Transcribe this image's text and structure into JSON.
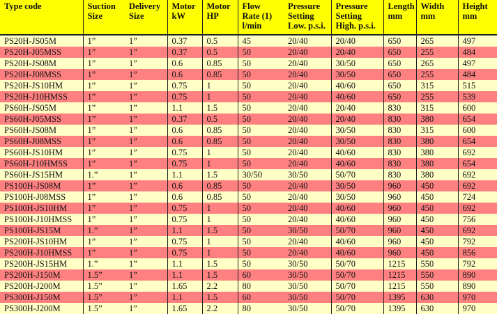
{
  "colors": {
    "header": "#ffff00",
    "row_light": "#ffffc6",
    "row_pink": "#ff8080"
  },
  "headers": [
    [
      "Type code"
    ],
    [
      "Suction",
      "Size"
    ],
    [
      "Delivery",
      "Size"
    ],
    [
      "Motor",
      "kW"
    ],
    [
      "Motor",
      "HP"
    ],
    [
      "Flow",
      "Rate (1)",
      "l/min"
    ],
    [
      "Pressure",
      "Setting",
      "Low. p.s.i."
    ],
    [
      "Pressure",
      "Setting",
      "High. p.s.i."
    ],
    [
      "Length",
      "mm"
    ],
    [
      "Width",
      "mm"
    ],
    [
      "Height",
      "mm"
    ]
  ],
  "rows": [
    [
      "PS20H-JS05M",
      "1”",
      "1”",
      "0.37",
      "0.5",
      "45",
      "20/40",
      "20/40",
      "650",
      "265",
      "497"
    ],
    [
      "PS20H-J05MSS",
      "1”",
      "1”",
      "0.37",
      "0.5",
      "50",
      "20/40",
      "20/40",
      "650",
      "255",
      "484"
    ],
    [
      "PS20H-JS08M",
      "1”",
      "1”",
      "0.6",
      "0.85",
      "50",
      "20/40",
      "30/50",
      "650",
      "265",
      "497"
    ],
    [
      "PS20H-J08MSS",
      "1”",
      "1”",
      "0.6",
      "0.85",
      "50",
      "20/40",
      "30/50",
      "650",
      "255",
      "484"
    ],
    [
      "PS20H-JS10HM",
      "1”",
      "1”",
      "0.75",
      "1",
      "50",
      "20/40",
      "40/60",
      "650",
      "315",
      "515"
    ],
    [
      "PS20H-J10HMSS",
      "1”",
      "1”",
      "0.75",
      "1",
      "50",
      "20/40",
      "40/60",
      "650",
      "255",
      "539"
    ],
    [
      "PS60H-JS05M",
      "1”",
      "1”",
      "1.1",
      "1.5",
      "50",
      "20/40",
      "20/40",
      "830",
      "315",
      "600"
    ],
    [
      "PS60H-J05MSS",
      "1”",
      "1”",
      "0.37",
      "0.5",
      "50",
      "20/40",
      "20/40",
      "830",
      "380",
      "654"
    ],
    [
      "PS60H-JS08M",
      "1”",
      "1”",
      "0.6",
      "0.85",
      "50",
      "20/40",
      "30/50",
      "830",
      "315",
      "600"
    ],
    [
      "PS60H-J08MSS",
      "1”",
      "1”",
      "0.6",
      "0.85",
      "50",
      "20/40",
      "30/50",
      "830",
      "380",
      "654"
    ],
    [
      "PS60H-JS10HM",
      "1”",
      "1”",
      "0.75",
      "1",
      "50",
      "20/40",
      "40/60",
      "830",
      "380",
      "692"
    ],
    [
      "PS60H-J10HMSS",
      "1”",
      "1”",
      "0.75",
      "1",
      "50",
      "20/40",
      "40/60",
      "830",
      "380",
      "654"
    ],
    [
      "PS60H-JS15HM",
      "1.”",
      "1”",
      "1.1",
      "1.5",
      "30/50",
      "30/50",
      "50/70",
      "830",
      "380",
      "692"
    ],
    [
      "PS100H-JS08M",
      "1”",
      "1”",
      "0.6",
      "0.85",
      "50",
      "20/40",
      "30/50",
      "960",
      "450",
      "692"
    ],
    [
      "PS100H-J08MSS",
      "1”",
      "1”",
      "0.6",
      "0.85",
      "50",
      "20/40",
      "30/50",
      "960",
      "450",
      "724"
    ],
    [
      "PS100H-JS10HM",
      "1”",
      "1”",
      "0.75",
      "1",
      "50",
      "20/40",
      "40/60",
      "960",
      "450",
      "692"
    ],
    [
      "PS100H-J10HMSS",
      "1”",
      "1”",
      "0.75",
      "1",
      "50",
      "20/40",
      "40/60",
      "960",
      "450",
      "756"
    ],
    [
      "PS100H-JS15M",
      "1.”",
      "1”",
      "1.1",
      "1.5",
      "50",
      "30/50",
      "50/70",
      "960",
      "450",
      "692"
    ],
    [
      "PS200H-JS10HM",
      "1”",
      "1”",
      "0.75",
      "1",
      "50",
      "20/40",
      "40/60",
      "960",
      "450",
      "792"
    ],
    [
      "PS200H-J10HMSS",
      "1”",
      "1”",
      "0.75",
      "1",
      "50",
      "20/40",
      "40/60",
      "960",
      "450",
      "856"
    ],
    [
      "PS200H-JS15HM",
      "1.”",
      "1”",
      "1.1",
      "1.5",
      "50",
      "30/50",
      "50/70",
      "1215",
      "550",
      "792"
    ],
    [
      "PS200H-J150M",
      "1.5”",
      "1”",
      "1.1",
      "1.5",
      "60",
      "30/50",
      "50/70",
      "1215",
      "550",
      "890"
    ],
    [
      "PS200H-J200M",
      "1.5”",
      "1”",
      "1.65",
      "2.2",
      "80",
      "30/50",
      "50/70",
      "1215",
      "550",
      "890"
    ],
    [
      "PS300H-J150M",
      "1.5”",
      "1”",
      "1.1",
      "1.5",
      "60",
      "30/50",
      "50/70",
      "1395",
      "630",
      "970"
    ],
    [
      "PS300H-J200M",
      "1.5”",
      "1”",
      "1.65",
      "2.2",
      "80",
      "30/50",
      "50/70",
      "1395",
      "630",
      "970"
    ]
  ]
}
